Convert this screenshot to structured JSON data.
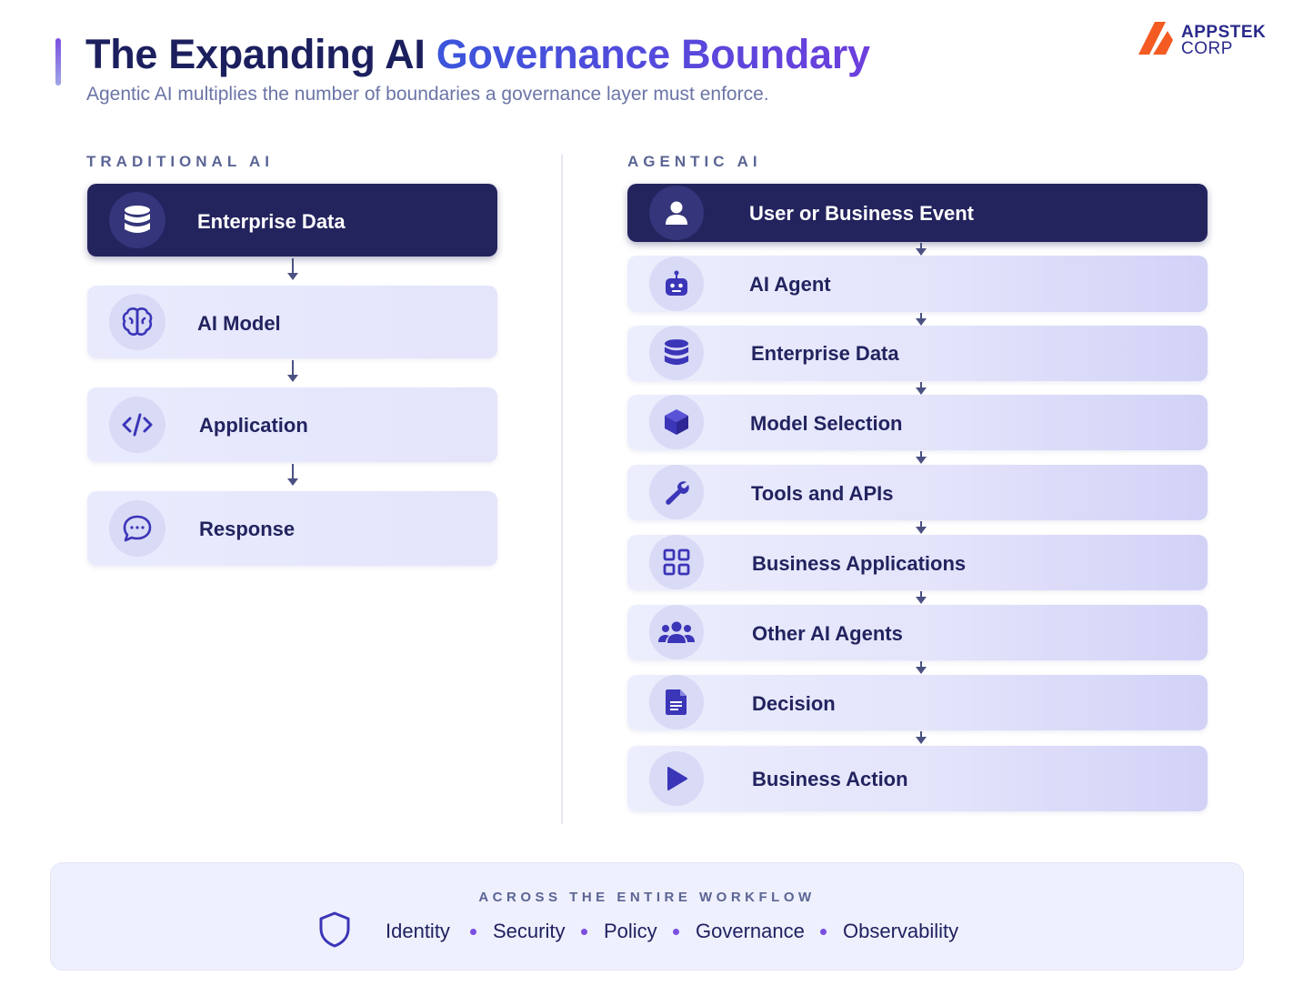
{
  "header": {
    "title_plain": "The Expanding AI ",
    "title_highlight": "Governance Boundary",
    "subtitle": "Agentic AI multiplies the number of boundaries a governance layer must enforce."
  },
  "brand": {
    "line1": "APPSTEK",
    "line2": "CORP",
    "accent_color": "#f35b22"
  },
  "traditional": {
    "heading": "TRADITIONAL AI",
    "steps": [
      {
        "label": "Enterprise Data",
        "icon": "database-icon"
      },
      {
        "label": "AI Model",
        "icon": "brain-icon"
      },
      {
        "label": "Application",
        "icon": "code-icon"
      },
      {
        "label": "Response",
        "icon": "chat-bubble-icon"
      }
    ]
  },
  "agentic": {
    "heading": "AGENTIC AI",
    "steps": [
      {
        "label": "User or Business Event",
        "icon": "user-icon"
      },
      {
        "label": "AI Agent",
        "icon": "robot-icon"
      },
      {
        "label": "Enterprise Data",
        "icon": "database-icon"
      },
      {
        "label": "Model Selection",
        "icon": "cube-icon"
      },
      {
        "label": "Tools and APIs",
        "icon": "wrench-icon"
      },
      {
        "label": "Business Applications",
        "icon": "grid-icon"
      },
      {
        "label": "Other AI Agents",
        "icon": "group-icon"
      },
      {
        "label": "Decision",
        "icon": "document-icon"
      },
      {
        "label": "Business Action",
        "icon": "play-icon"
      }
    ]
  },
  "footer": {
    "heading": "ACROSS THE ENTIRE WORKFLOW",
    "items": [
      "Identity",
      "Security",
      "Policy",
      "Governance",
      "Observability"
    ]
  },
  "colors": {
    "dark_node": "#23235e",
    "icon_primary": "#3b35b8",
    "dot": "#7a4fe0"
  }
}
